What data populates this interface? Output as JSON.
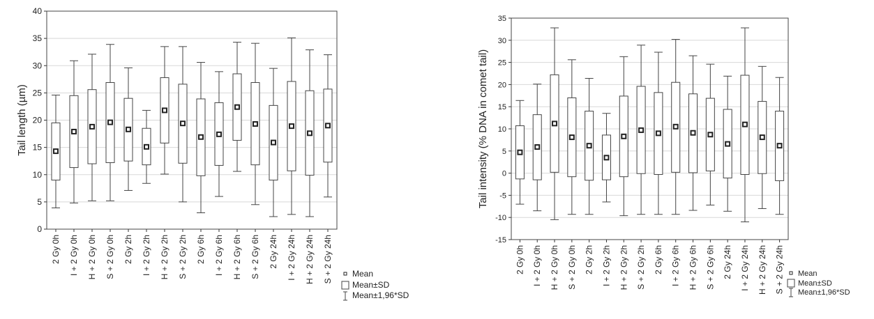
{
  "chart_data": [
    {
      "type": "box",
      "ylabel": "Tail length (µm)",
      "ylim": [
        0,
        40
      ],
      "yticks": [
        0,
        5,
        10,
        15,
        20,
        25,
        30,
        35,
        40
      ],
      "grid": "horizontal",
      "categories": [
        "2 Gy 0h",
        "I + 2 Gy 0h",
        "H + 2 Gy 0h",
        "S + 2 Gy 0h",
        "2 Gy 2h",
        "I + 2 Gy 2h",
        "H + 2 Gy 2h",
        "S + 2 Gy 2h",
        "2 Gy 6h",
        "I + 2 Gy 6h",
        "H + 2 Gy 6h",
        "S + 2 Gy 6h",
        "2 Gy 24h",
        "I + 2 Gy 24h",
        "H + 2 Gy 24h",
        "S + 2 Gy 24h"
      ],
      "mean": [
        14.3,
        17.9,
        18.8,
        19.6,
        18.3,
        15.1,
        21.8,
        19.4,
        16.9,
        17.4,
        22.4,
        19.3,
        15.9,
        18.9,
        17.6,
        19.0
      ],
      "sd_low": [
        9.0,
        11.3,
        12.0,
        12.2,
        12.5,
        11.8,
        15.8,
        12.1,
        9.8,
        11.7,
        16.3,
        11.8,
        9.0,
        10.7,
        9.9,
        12.3
      ],
      "sd_high": [
        19.5,
        24.5,
        25.6,
        26.9,
        24.0,
        18.5,
        27.8,
        26.6,
        23.9,
        23.2,
        28.5,
        26.9,
        22.7,
        27.1,
        25.4,
        25.7
      ],
      "ci_low": [
        3.9,
        4.8,
        5.2,
        5.2,
        7.1,
        8.4,
        10.1,
        5.0,
        3.0,
        6.0,
        10.6,
        4.5,
        2.3,
        2.7,
        2.3,
        5.9
      ],
      "ci_high": [
        24.6,
        30.9,
        32.1,
        33.9,
        29.6,
        21.8,
        33.5,
        33.5,
        30.6,
        28.9,
        34.3,
        34.1,
        29.5,
        35.1,
        32.9,
        32.0
      ],
      "legend_position": "bottom-right",
      "legend": [
        "Mean",
        "Mean±SD",
        "Mean±1,96*SD"
      ]
    },
    {
      "type": "box",
      "ylabel": "Tail intensity (% DNA in comet tail)",
      "ylim": [
        -15,
        35
      ],
      "yticks": [
        -15,
        -10,
        -5,
        0,
        5,
        10,
        15,
        20,
        25,
        30,
        35
      ],
      "grid": "horizontal",
      "categories": [
        "2 Gy 0h",
        "I + 2 Gy 0h",
        "H + 2 Gy 0h",
        "S + 2 Gy 0h",
        "2 Gy 2h",
        "I + 2 Gy 2h",
        "H + 2 Gy 2h",
        "S + 2 Gy 2h",
        "2 Gy 6h",
        "I + 2 Gy 6h",
        "H + 2 Gy 6h",
        "S + 2 Gy 6h",
        "2 Gy 24h",
        "I + 2 Gy 24h",
        "H + 2 Gy 24h",
        "S + 2 Gy 24h"
      ],
      "mean": [
        4.7,
        5.9,
        11.2,
        8.1,
        6.2,
        3.5,
        8.3,
        9.7,
        9.0,
        10.5,
        9.1,
        8.7,
        6.6,
        11.0,
        8.1,
        6.2
      ],
      "sd_low": [
        -1.3,
        -1.5,
        0.2,
        -0.8,
        -1.6,
        -1.5,
        -0.8,
        -0.1,
        -0.3,
        0.2,
        0.1,
        0.5,
        -1.1,
        -0.3,
        -0.1,
        -1.7
      ],
      "sd_high": [
        10.7,
        13.2,
        22.2,
        17.0,
        14.0,
        8.6,
        17.4,
        19.6,
        18.2,
        20.5,
        17.9,
        16.9,
        14.4,
        22.1,
        16.2,
        14.0
      ],
      "ci_low": [
        -7.0,
        -8.5,
        -10.5,
        -9.3,
        -9.3,
        -6.5,
        -9.6,
        -9.3,
        -9.3,
        -9.3,
        -8.4,
        -7.2,
        -8.6,
        -11.0,
        -8.0,
        -9.3
      ],
      "ci_high": [
        16.4,
        20.1,
        32.8,
        25.6,
        21.4,
        13.5,
        26.3,
        28.9,
        27.3,
        30.2,
        26.5,
        24.6,
        21.9,
        32.8,
        24.1,
        21.6
      ],
      "legend_position": "bottom-right",
      "legend": [
        "Mean",
        "Mean±SD",
        "Mean±1,96*SD"
      ]
    }
  ]
}
